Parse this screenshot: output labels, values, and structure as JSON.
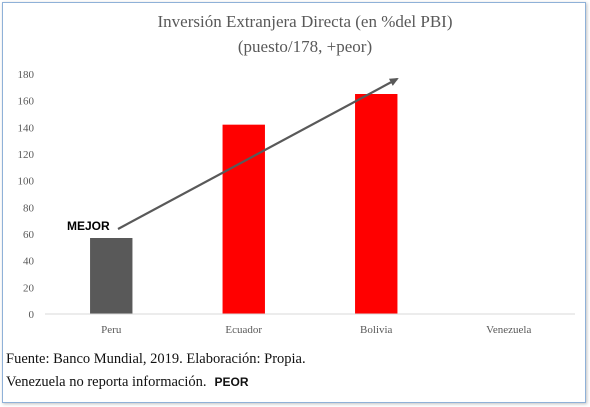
{
  "chart_data": {
    "type": "bar",
    "title_line1": "Inversión Extranjera Directa (en %del PBI)",
    "title_line2": "(puesto/178, +peor)",
    "categories": [
      "Peru",
      "Ecuador",
      "Bolivia",
      "Venezuela"
    ],
    "values": [
      57,
      142,
      165,
      null
    ],
    "bar_colors": [
      "#595959",
      "#ff0000",
      "#ff0000",
      "#ff0000"
    ],
    "ylim": [
      0,
      180
    ],
    "yticks": [
      0,
      20,
      40,
      60,
      80,
      100,
      120,
      140,
      160,
      180
    ],
    "grid": false,
    "legend": "none",
    "annotations": {
      "best_label": "MEJOR",
      "trend_arrow_color": "#595959"
    }
  },
  "footer": {
    "source": "Fuente: Banco Mundial, 2019. Elaboración: Propia.",
    "note": "Venezuela no reporta información.",
    "worst_label": "PEOR"
  }
}
